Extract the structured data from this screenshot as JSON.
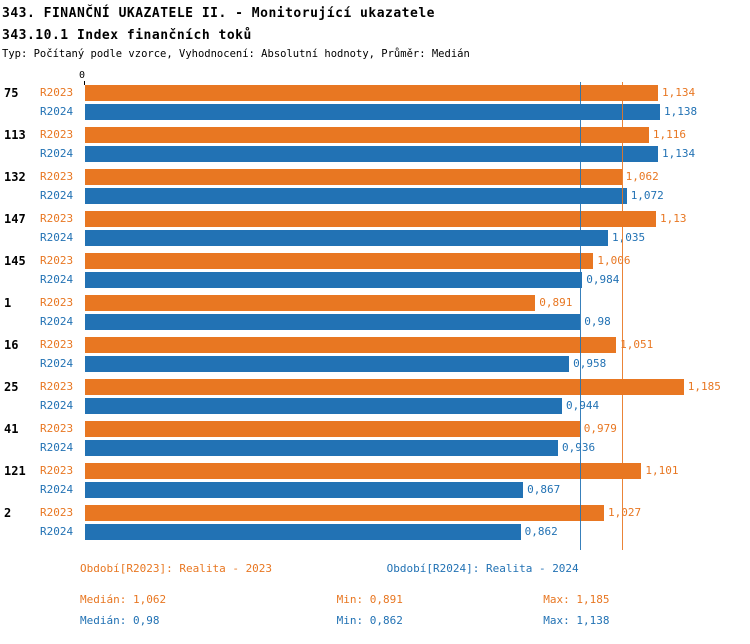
{
  "header": {
    "title": "343. FINANČNÍ UKAZATELE II. - Monitorující ukazatele",
    "subtitle": "343.10.1 Index finančních toků",
    "meta": "Typ: Počítaný podle vzorce, Vyhodnocení: Absolutní hodnoty, Průměr: Medián"
  },
  "colors": {
    "r2023": "#E87722",
    "r2024": "#2272B4"
  },
  "chart_data": {
    "type": "bar",
    "orientation": "horizontal",
    "origin_label": "0",
    "categories": [
      "75",
      "113",
      "132",
      "147",
      "145",
      "1",
      "16",
      "25",
      "41",
      "121",
      "2"
    ],
    "series": [
      {
        "name": "R2023",
        "color": "#E87722",
        "values": [
          1.134,
          1.116,
          1.062,
          1.13,
          1.006,
          0.891,
          1.051,
          1.185,
          0.979,
          1.101,
          1.027
        ],
        "value_labels": [
          "1,134",
          "1,116",
          "1,062",
          "1,13",
          "1,006",
          "0,891",
          "1,051",
          "1,185",
          "0,979",
          "1,101",
          "1,027"
        ]
      },
      {
        "name": "R2024",
        "color": "#2272B4",
        "values": [
          1.138,
          1.134,
          1.072,
          1.035,
          0.984,
          0.98,
          0.958,
          0.944,
          0.936,
          0.867,
          0.862
        ],
        "value_labels": [
          "1,138",
          "1,134",
          "1,072",
          "1,035",
          "0,984",
          "0,98",
          "0,958",
          "0,944",
          "0,936",
          "0,867",
          "0,862"
        ]
      }
    ],
    "xlim": [
      0,
      1.316
    ],
    "grid": false,
    "legend_position": "bottom",
    "median_lines": [
      {
        "series": "R2023",
        "value": 1.062,
        "color": "#E87722"
      },
      {
        "series": "R2024",
        "value": 0.98,
        "color": "#2272B4"
      }
    ]
  },
  "legend": {
    "r2023": "Období[R2023]: Realita - 2023",
    "r2024": "Období[R2024]: Realita - 2024"
  },
  "stats": {
    "r2023": {
      "median": "Medián: 1,062",
      "min": "Min: 0,891",
      "max": "Max: 1,185"
    },
    "r2024": {
      "median": "Medián: 0,98",
      "min": "Min: 0,862",
      "max": "Max: 1,138"
    }
  }
}
